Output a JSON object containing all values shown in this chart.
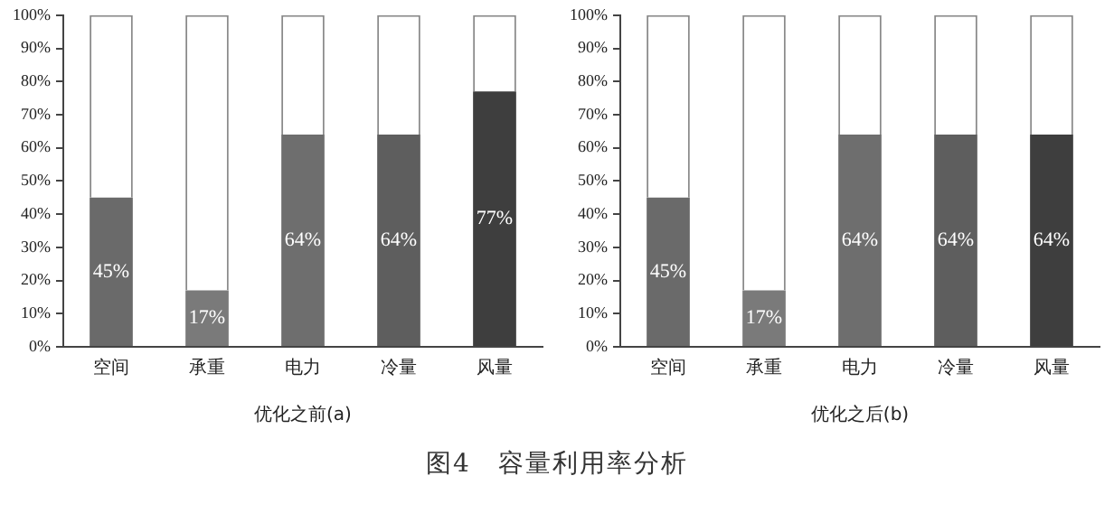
{
  "chart_data": [
    {
      "type": "bar",
      "stacked": true,
      "xlabel": "优化之前(a)",
      "categories": [
        "空间",
        "承重",
        "电力",
        "冷量",
        "风量"
      ],
      "series": [
        {
          "colors": [
            "#6a6a6a",
            "#7a7a7a",
            "#6e6e6e",
            "#5e5e5e",
            "#3e3e3e"
          ],
          "values": [
            45,
            17,
            64,
            64,
            77
          ],
          "value_labels": [
            "45%",
            "17%",
            "64%",
            "64%",
            "77%"
          ]
        },
        {
          "color": "#ffffff",
          "values": [
            55,
            83,
            36,
            36,
            23
          ]
        }
      ],
      "ylim": [
        0,
        100
      ],
      "yticks": [
        {
          "value": 0,
          "label": "0%"
        },
        {
          "value": 10,
          "label": "10%"
        },
        {
          "value": 20,
          "label": "20%"
        },
        {
          "value": 30,
          "label": "30%"
        },
        {
          "value": 40,
          "label": "40%"
        },
        {
          "value": 50,
          "label": "50%"
        },
        {
          "value": 60,
          "label": "60%"
        },
        {
          "value": 70,
          "label": "70%"
        },
        {
          "value": 80,
          "label": "80%"
        },
        {
          "value": 90,
          "label": "90%"
        },
        {
          "value": 100,
          "label": "100%"
        }
      ],
      "grid": false,
      "legend": false
    },
    {
      "type": "bar",
      "stacked": true,
      "xlabel": "优化之后(b)",
      "categories": [
        "空间",
        "承重",
        "电力",
        "冷量",
        "风量"
      ],
      "series": [
        {
          "colors": [
            "#6a6a6a",
            "#7a7a7a",
            "#6e6e6e",
            "#5e5e5e",
            "#3e3e3e"
          ],
          "values": [
            45,
            17,
            64,
            64,
            64
          ],
          "value_labels": [
            "45%",
            "17%",
            "64%",
            "64%",
            "64%"
          ]
        },
        {
          "color": "#ffffff",
          "values": [
            55,
            83,
            36,
            36,
            36
          ]
        }
      ],
      "ylim": [
        0,
        100
      ],
      "yticks": [
        {
          "value": 0,
          "label": "0%"
        },
        {
          "value": 10,
          "label": "10%"
        },
        {
          "value": 20,
          "label": "20%"
        },
        {
          "value": 30,
          "label": "30%"
        },
        {
          "value": 40,
          "label": "40%"
        },
        {
          "value": 50,
          "label": "50%"
        },
        {
          "value": 60,
          "label": "60%"
        },
        {
          "value": 70,
          "label": "70%"
        },
        {
          "value": 80,
          "label": "80%"
        },
        {
          "value": 90,
          "label": "90%"
        },
        {
          "value": 100,
          "label": "100%"
        }
      ],
      "grid": false,
      "legend": false,
      "annotations": [
        "图4　容量利用率分析"
      ]
    }
  ]
}
